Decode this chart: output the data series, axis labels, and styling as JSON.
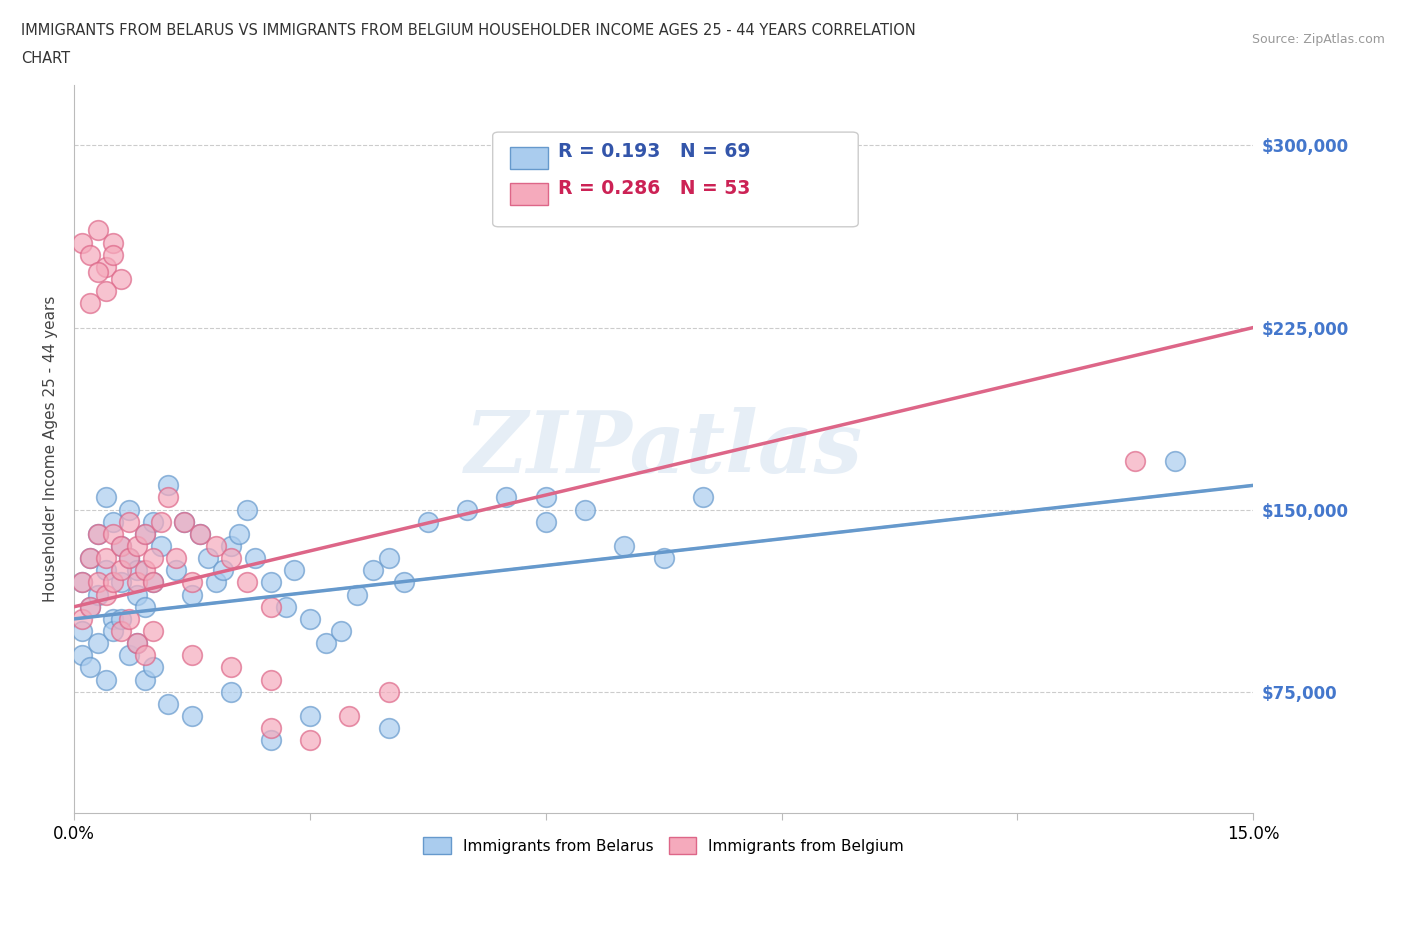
{
  "title_line1": "IMMIGRANTS FROM BELARUS VS IMMIGRANTS FROM BELGIUM HOUSEHOLDER INCOME AGES 25 - 44 YEARS CORRELATION",
  "title_line2": "CHART",
  "source_text": "Source: ZipAtlas.com",
  "ylabel": "Householder Income Ages 25 - 44 years",
  "xmin": 0.0,
  "xmax": 0.15,
  "ymin": 25000,
  "ymax": 325000,
  "yticks": [
    75000,
    150000,
    225000,
    300000
  ],
  "ytick_labels": [
    "$75,000",
    "$150,000",
    "$225,000",
    "$300,000"
  ],
  "xtick_labels": [
    "0.0%",
    "",
    "",
    "",
    "",
    "15.0%"
  ],
  "belarus_color": "#aaccee",
  "belgium_color": "#f5aabc",
  "belarus_edge": "#6699cc",
  "belgium_edge": "#dd6688",
  "belarus_R": 0.193,
  "belarus_N": 69,
  "belgium_R": 0.286,
  "belgium_N": 53,
  "watermark": "ZIPatlas",
  "belarus_trendline": [
    105000,
    160000
  ],
  "belgium_trendline": [
    110000,
    225000
  ],
  "belarus_scatter_x": [
    0.001,
    0.001,
    0.002,
    0.002,
    0.003,
    0.003,
    0.004,
    0.004,
    0.005,
    0.005,
    0.006,
    0.006,
    0.007,
    0.007,
    0.008,
    0.008,
    0.009,
    0.009,
    0.01,
    0.01,
    0.011,
    0.012,
    0.013,
    0.014,
    0.015,
    0.016,
    0.017,
    0.018,
    0.019,
    0.02,
    0.021,
    0.022,
    0.023,
    0.025,
    0.027,
    0.028,
    0.03,
    0.032,
    0.034,
    0.036,
    0.038,
    0.04,
    0.042,
    0.045,
    0.05,
    0.055,
    0.06,
    0.065,
    0.07,
    0.075,
    0.001,
    0.002,
    0.003,
    0.004,
    0.005,
    0.006,
    0.007,
    0.008,
    0.009,
    0.01,
    0.012,
    0.015,
    0.02,
    0.025,
    0.03,
    0.04,
    0.06,
    0.08,
    0.14
  ],
  "belarus_scatter_y": [
    120000,
    100000,
    130000,
    110000,
    140000,
    115000,
    155000,
    125000,
    145000,
    105000,
    135000,
    120000,
    150000,
    130000,
    125000,
    115000,
    140000,
    110000,
    145000,
    120000,
    135000,
    160000,
    125000,
    145000,
    115000,
    140000,
    130000,
    120000,
    125000,
    135000,
    140000,
    150000,
    130000,
    120000,
    110000,
    125000,
    105000,
    95000,
    100000,
    115000,
    125000,
    130000,
    120000,
    145000,
    150000,
    155000,
    145000,
    150000,
    135000,
    130000,
    90000,
    85000,
    95000,
    80000,
    100000,
    105000,
    90000,
    95000,
    80000,
    85000,
    70000,
    65000,
    75000,
    55000,
    65000,
    60000,
    155000,
    155000,
    170000
  ],
  "belgium_scatter_x": [
    0.001,
    0.001,
    0.002,
    0.002,
    0.003,
    0.003,
    0.004,
    0.004,
    0.005,
    0.005,
    0.006,
    0.006,
    0.007,
    0.007,
    0.008,
    0.008,
    0.009,
    0.009,
    0.01,
    0.01,
    0.011,
    0.012,
    0.013,
    0.014,
    0.015,
    0.016,
    0.018,
    0.02,
    0.022,
    0.025,
    0.001,
    0.002,
    0.003,
    0.004,
    0.005,
    0.006,
    0.002,
    0.003,
    0.004,
    0.005,
    0.006,
    0.007,
    0.008,
    0.009,
    0.01,
    0.015,
    0.02,
    0.025,
    0.035,
    0.04,
    0.025,
    0.03,
    0.135
  ],
  "belgium_scatter_y": [
    120000,
    105000,
    130000,
    110000,
    140000,
    120000,
    130000,
    115000,
    140000,
    120000,
    135000,
    125000,
    145000,
    130000,
    120000,
    135000,
    140000,
    125000,
    130000,
    120000,
    145000,
    155000,
    130000,
    145000,
    120000,
    140000,
    135000,
    130000,
    120000,
    110000,
    260000,
    255000,
    265000,
    250000,
    260000,
    245000,
    235000,
    248000,
    240000,
    255000,
    100000,
    105000,
    95000,
    90000,
    100000,
    90000,
    85000,
    80000,
    65000,
    75000,
    60000,
    55000,
    170000
  ]
}
